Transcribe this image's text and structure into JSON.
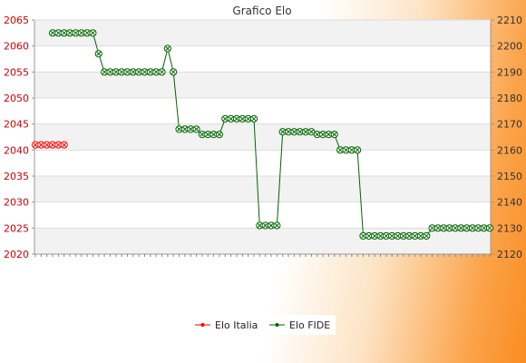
{
  "chart_data": {
    "type": "line",
    "title": "Grafico Elo",
    "xlabel": "",
    "ylabel_left": "",
    "ylabel_right": "",
    "y_left": {
      "min": 2020,
      "max": 2065,
      "ticks": [
        2020,
        2025,
        2030,
        2035,
        2040,
        2045,
        2050,
        2055,
        2060,
        2065
      ]
    },
    "y_right": {
      "min": 2120,
      "max": 2210,
      "ticks": [
        2120,
        2130,
        2140,
        2150,
        2160,
        2170,
        2180,
        2190,
        2200,
        2210
      ]
    },
    "x_tick_count": 80,
    "legend_placement": "bottom-center",
    "grid": true,
    "series": [
      {
        "name": "Elo Italia",
        "axis": "left",
        "color": "#ff0000",
        "points": [
          {
            "i": 0,
            "y": 2041
          },
          {
            "i": 1,
            "y": 2041
          },
          {
            "i": 2,
            "y": 2041
          },
          {
            "i": 3,
            "y": 2041
          },
          {
            "i": 4,
            "y": 2041
          },
          {
            "i": 5,
            "y": 2041
          }
        ]
      },
      {
        "name": "Elo FIDE",
        "axis": "right",
        "color": "#006400",
        "points": [
          {
            "i": 3,
            "y": 2205
          },
          {
            "i": 4,
            "y": 2205
          },
          {
            "i": 5,
            "y": 2205
          },
          {
            "i": 6,
            "y": 2205
          },
          {
            "i": 7,
            "y": 2205
          },
          {
            "i": 8,
            "y": 2205
          },
          {
            "i": 9,
            "y": 2205
          },
          {
            "i": 10,
            "y": 2205
          },
          {
            "i": 11,
            "y": 2197
          },
          {
            "i": 12,
            "y": 2190
          },
          {
            "i": 13,
            "y": 2190
          },
          {
            "i": 14,
            "y": 2190
          },
          {
            "i": 15,
            "y": 2190
          },
          {
            "i": 16,
            "y": 2190
          },
          {
            "i": 17,
            "y": 2190
          },
          {
            "i": 18,
            "y": 2190
          },
          {
            "i": 19,
            "y": 2190
          },
          {
            "i": 20,
            "y": 2190
          },
          {
            "i": 21,
            "y": 2190
          },
          {
            "i": 22,
            "y": 2190
          },
          {
            "i": 23,
            "y": 2199
          },
          {
            "i": 24,
            "y": 2190
          },
          {
            "i": 25,
            "y": 2168
          },
          {
            "i": 26,
            "y": 2168
          },
          {
            "i": 27,
            "y": 2168
          },
          {
            "i": 28,
            "y": 2168
          },
          {
            "i": 29,
            "y": 2166
          },
          {
            "i": 30,
            "y": 2166
          },
          {
            "i": 31,
            "y": 2166
          },
          {
            "i": 32,
            "y": 2166
          },
          {
            "i": 33,
            "y": 2172
          },
          {
            "i": 34,
            "y": 2172
          },
          {
            "i": 35,
            "y": 2172
          },
          {
            "i": 36,
            "y": 2172
          },
          {
            "i": 37,
            "y": 2172
          },
          {
            "i": 38,
            "y": 2172
          },
          {
            "i": 39,
            "y": 2131
          },
          {
            "i": 40,
            "y": 2131
          },
          {
            "i": 41,
            "y": 2131
          },
          {
            "i": 42,
            "y": 2131
          },
          {
            "i": 43,
            "y": 2167
          },
          {
            "i": 44,
            "y": 2167
          },
          {
            "i": 45,
            "y": 2167
          },
          {
            "i": 46,
            "y": 2167
          },
          {
            "i": 47,
            "y": 2167
          },
          {
            "i": 48,
            "y": 2167
          },
          {
            "i": 49,
            "y": 2166
          },
          {
            "i": 50,
            "y": 2166
          },
          {
            "i": 51,
            "y": 2166
          },
          {
            "i": 52,
            "y": 2166
          },
          {
            "i": 53,
            "y": 2160
          },
          {
            "i": 54,
            "y": 2160
          },
          {
            "i": 55,
            "y": 2160
          },
          {
            "i": 56,
            "y": 2160
          },
          {
            "i": 57,
            "y": 2127
          },
          {
            "i": 58,
            "y": 2127
          },
          {
            "i": 59,
            "y": 2127
          },
          {
            "i": 60,
            "y": 2127
          },
          {
            "i": 61,
            "y": 2127
          },
          {
            "i": 62,
            "y": 2127
          },
          {
            "i": 63,
            "y": 2127
          },
          {
            "i": 64,
            "y": 2127
          },
          {
            "i": 65,
            "y": 2127
          },
          {
            "i": 66,
            "y": 2127
          },
          {
            "i": 67,
            "y": 2127
          },
          {
            "i": 68,
            "y": 2127
          },
          {
            "i": 69,
            "y": 2130
          },
          {
            "i": 70,
            "y": 2130
          },
          {
            "i": 71,
            "y": 2130
          },
          {
            "i": 72,
            "y": 2130
          },
          {
            "i": 73,
            "y": 2130
          },
          {
            "i": 74,
            "y": 2130
          },
          {
            "i": 75,
            "y": 2130
          },
          {
            "i": 76,
            "y": 2130
          },
          {
            "i": 77,
            "y": 2130
          },
          {
            "i": 78,
            "y": 2130
          },
          {
            "i": 79,
            "y": 2130
          }
        ]
      }
    ]
  }
}
